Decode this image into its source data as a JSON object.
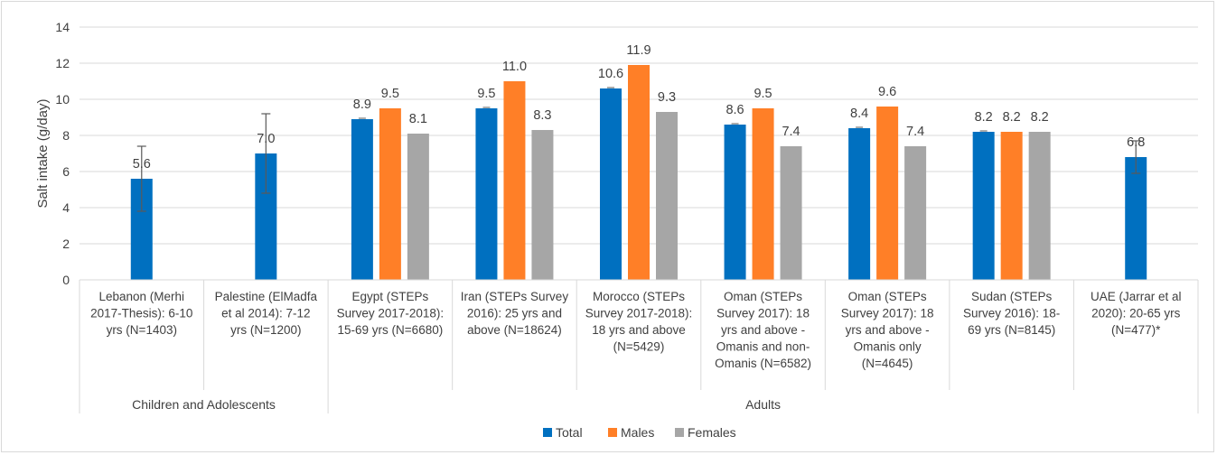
{
  "chart_data": {
    "type": "bar",
    "ylabel": "Salt intake (g/day)",
    "ylim": [
      0,
      14
    ],
    "yticks": [
      0,
      2,
      4,
      6,
      8,
      10,
      12,
      14
    ],
    "grid": true,
    "legend_position": "bottom",
    "colors": {
      "Total": "#0070c0",
      "Males": "#ff7f27",
      "Females": "#a6a6a6"
    },
    "categories": [
      [
        "Lebanon (Merhi",
        "2017-Thesis): 6-10",
        "yrs (N=1403)"
      ],
      [
        "Palestine (ElMadfa",
        "et al 2014): 7-12",
        "yrs (N=1200)"
      ],
      [
        "Egypt (STEPs",
        "Survey 2017-2018):",
        "15-69 yrs (N=6680)"
      ],
      [
        "Iran (STEPs Survey",
        "2016): 25 yrs and",
        "above (N=18624)"
      ],
      [
        "Morocco (STEPs",
        "Survey 2017-2018):",
        "18 yrs and above",
        "(N=5429)"
      ],
      [
        "Oman (STEPs",
        "Survey 2017): 18",
        "yrs and above -",
        "Omanis and non-",
        "Omanis (N=6582)"
      ],
      [
        "Oman (STEPs",
        "Survey 2017): 18",
        "yrs and above -",
        "Omanis only",
        "(N=4645)"
      ],
      [
        "Sudan (STEPs",
        "Survey 2016): 18-",
        "69 yrs (N=8145)"
      ],
      [
        "UAE (Jarrar et al",
        "2020): 20-65 yrs",
        "(N=477)*"
      ]
    ],
    "groups": [
      {
        "label": "Children and Adolescents",
        "from": 0,
        "to": 1
      },
      {
        "label": "Adults",
        "from": 2,
        "to": 8
      }
    ],
    "series": [
      {
        "name": "Total",
        "values": [
          5.6,
          7.0,
          8.9,
          9.5,
          10.6,
          8.6,
          8.4,
          8.2,
          6.8
        ],
        "labels": [
          "5.6",
          "7.0",
          "8.9",
          "9.5",
          "10.6",
          "8.6",
          "8.4",
          "8.2",
          "6.8"
        ],
        "error": [
          1.8,
          2.2,
          0.05,
          0.05,
          0.05,
          0.05,
          0.05,
          0.05,
          0.9
        ]
      },
      {
        "name": "Males",
        "values": [
          null,
          null,
          9.5,
          11.0,
          11.9,
          9.5,
          9.6,
          8.2,
          null
        ],
        "labels": [
          "",
          "",
          "9.5",
          "11.0",
          "11.9",
          "9.5",
          "9.6",
          "8.2",
          ""
        ]
      },
      {
        "name": "Females",
        "values": [
          null,
          null,
          8.1,
          8.3,
          9.3,
          7.4,
          7.4,
          8.2,
          null
        ],
        "labels": [
          "",
          "",
          "8.1",
          "8.3",
          "9.3",
          "7.4",
          "7.4",
          "8.2",
          ""
        ]
      }
    ]
  }
}
